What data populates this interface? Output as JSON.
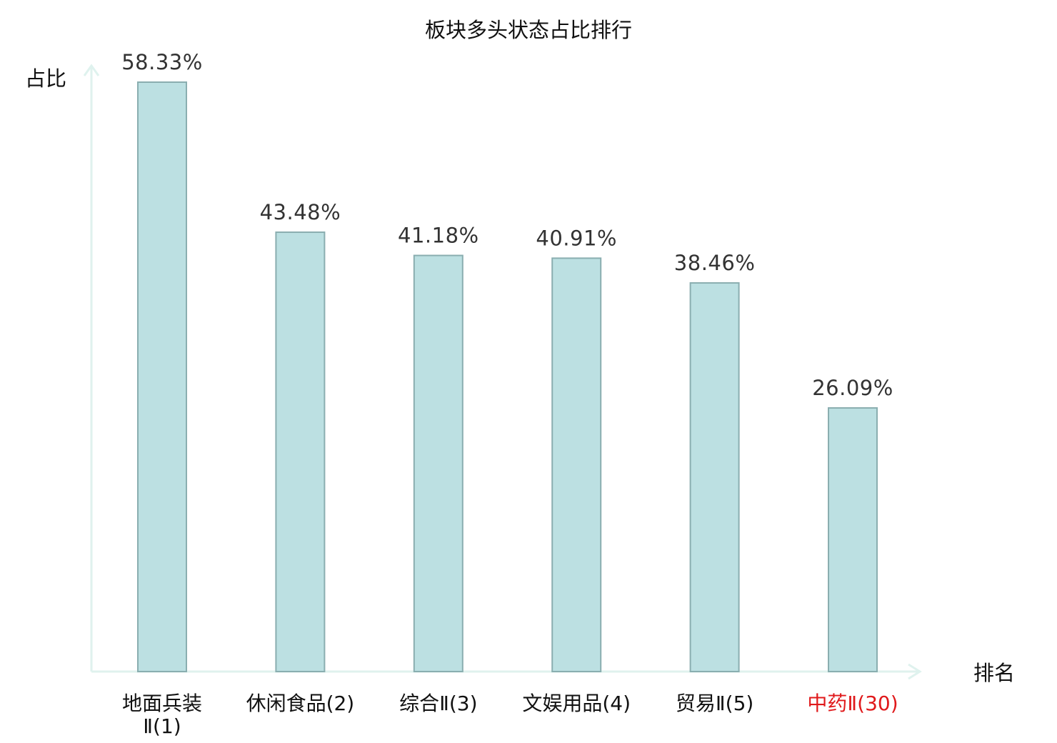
{
  "chart_data": {
    "type": "bar",
    "title": "板块多头状态占比排行",
    "ylabel": "占比",
    "xlabel": "排名",
    "ylim": [
      0,
      60
    ],
    "grid": false,
    "categories": [
      {
        "line1": "地面兵装",
        "line2": "Ⅱ(1)"
      },
      {
        "line1": "休闲食品(2)",
        "line2": ""
      },
      {
        "line1": "综合Ⅱ(3)",
        "line2": ""
      },
      {
        "line1": "文娱用品(4)",
        "line2": ""
      },
      {
        "line1": "贸易Ⅱ(5)",
        "line2": ""
      },
      {
        "line1": "中药Ⅱ(30)",
        "line2": ""
      }
    ],
    "values": [
      58.33,
      43.48,
      41.18,
      40.91,
      38.46,
      26.09
    ],
    "value_labels": [
      "58.33%",
      "43.48%",
      "41.18%",
      "40.91%",
      "38.46%",
      "26.09%"
    ],
    "highlight_index": 5
  },
  "colors": {
    "bar_fill": "#bce0e2",
    "bar_stroke": "#8aaeb0",
    "axis": "#dff2ee",
    "label": "#111111",
    "value_label": "#333333",
    "highlight": "#e0191b"
  }
}
